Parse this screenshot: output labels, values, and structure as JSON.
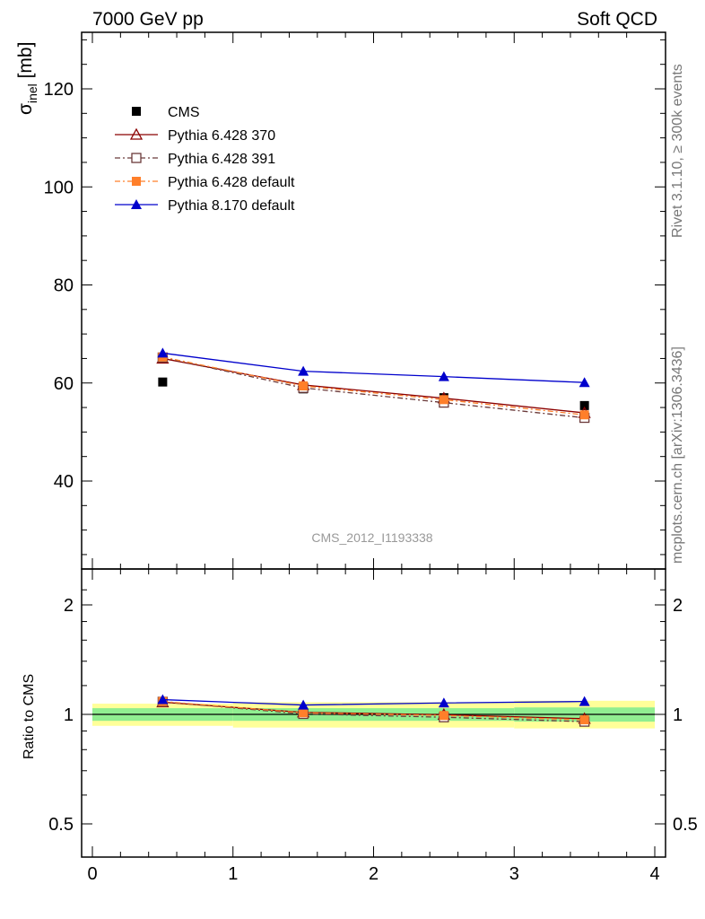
{
  "header": {
    "left": "7000 GeV pp",
    "right": "Soft QCD"
  },
  "side_labels": {
    "rivet": "Rivet 3.1.10, ≥ 300k events",
    "mcplots": "mcplots.cern.ch [arXiv:1306.3436]"
  },
  "watermark": "CMS_2012_I1193338",
  "colors": {
    "cms": "#000000",
    "p6_370": "#8b0000",
    "p6_391": "#6b3a3a",
    "p6_default": "#ff7f2a",
    "p8_default": "#0000cc",
    "band_inner": "#90ee90",
    "band_outer": "#ffff99"
  },
  "chart_data": [
    {
      "type": "scatter",
      "panel": "main",
      "ylabel_main": "σ",
      "ylabel_sub": "inel",
      "ylabel_unit": " [mb]",
      "ylim": [
        23,
        132
      ],
      "xlim": [
        -0.08,
        4.08
      ],
      "yticks": [
        40,
        60,
        80,
        100,
        120
      ],
      "xticks": [
        0,
        1,
        2,
        3,
        4
      ],
      "legend_position": "top-left",
      "series": [
        {
          "name": "CMS",
          "marker": "square-filled",
          "line": "none",
          "x": [
            0.5,
            1.5,
            2.5,
            3.5
          ],
          "y": [
            60.2,
            58.8,
            57.0,
            55.4
          ],
          "yerr": [
            1.5,
            1.5,
            1.5,
            1.5
          ]
        },
        {
          "name": "Pythia 6.428 370",
          "marker": "triangle-open",
          "line": "solid",
          "x": [
            0.5,
            1.5,
            2.5,
            3.5
          ],
          "y": [
            65.0,
            59.6,
            56.9,
            53.9
          ]
        },
        {
          "name": "Pythia 6.428 391",
          "marker": "square-open",
          "line": "dashdot",
          "x": [
            0.5,
            1.5,
            2.5,
            3.5
          ],
          "y": [
            65.2,
            59.0,
            56.0,
            52.9
          ]
        },
        {
          "name": "Pythia 6.428 default",
          "marker": "square-filled",
          "line": "dashdot",
          "x": [
            0.5,
            1.5,
            2.5,
            3.5
          ],
          "y": [
            65.3,
            59.4,
            56.6,
            53.5
          ]
        },
        {
          "name": "Pythia 8.170 default",
          "marker": "triangle-filled",
          "line": "solid",
          "x": [
            0.5,
            1.5,
            2.5,
            3.5
          ],
          "y": [
            66.1,
            62.4,
            61.3,
            60.1
          ]
        }
      ]
    },
    {
      "type": "line",
      "panel": "ratio",
      "ylabel": "Ratio to CMS",
      "ylim": [
        0.43,
        2.3
      ],
      "log_y": true,
      "yticks": [
        0.5,
        1,
        2
      ],
      "ytick_labels": [
        "0.5",
        "1",
        "2"
      ],
      "xticks": [
        0,
        1,
        2,
        3,
        4
      ],
      "xtick_labels": [
        "0",
        "1",
        "2",
        "3",
        "4"
      ],
      "bands": [
        {
          "x": [
            0,
            1
          ],
          "inner": [
            0.96,
            1.04
          ],
          "outer": [
            0.93,
            1.07
          ]
        },
        {
          "x": [
            1,
            2
          ],
          "inner": [
            0.96,
            1.04
          ],
          "outer": [
            0.92,
            1.08
          ]
        },
        {
          "x": [
            2,
            3
          ],
          "inner": [
            0.96,
            1.04
          ],
          "outer": [
            0.92,
            1.08
          ]
        },
        {
          "x": [
            3,
            4
          ],
          "inner": [
            0.955,
            1.045
          ],
          "outer": [
            0.915,
            1.09
          ]
        }
      ],
      "series": [
        {
          "name": "Pythia 6.428 370",
          "x": [
            0.5,
            1.5,
            2.5,
            3.5
          ],
          "y": [
            1.08,
            1.013,
            0.998,
            0.973
          ]
        },
        {
          "name": "Pythia 6.428 391",
          "x": [
            0.5,
            1.5,
            2.5,
            3.5
          ],
          "y": [
            1.083,
            1.003,
            0.982,
            0.955
          ]
        },
        {
          "name": "Pythia 6.428 default",
          "x": [
            0.5,
            1.5,
            2.5,
            3.5
          ],
          "y": [
            1.085,
            1.01,
            0.993,
            0.966
          ]
        },
        {
          "name": "Pythia 8.170 default",
          "x": [
            0.5,
            1.5,
            2.5,
            3.5
          ],
          "y": [
            1.098,
            1.061,
            1.075,
            1.085
          ]
        }
      ]
    }
  ]
}
